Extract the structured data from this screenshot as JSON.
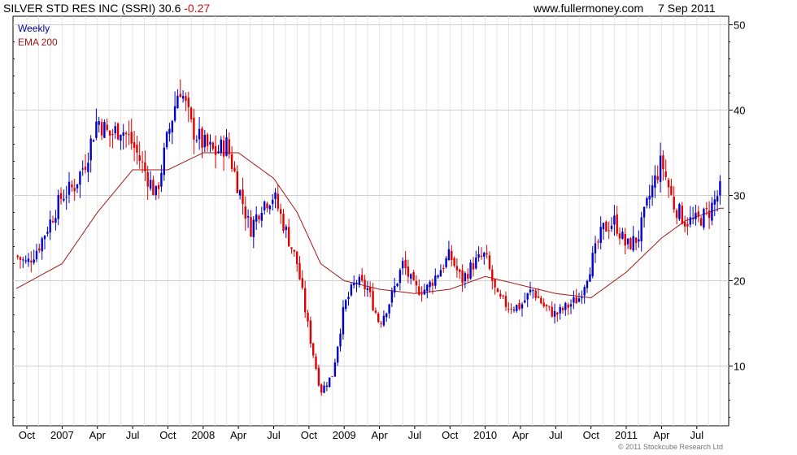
{
  "header": {
    "name": "SILVER STD RES INC (SSRI)",
    "last": "30.6",
    "change": "-0.27",
    "site": "www.fullermoney.com",
    "date": "7 Sep 2011"
  },
  "footer": {
    "copyright": "© 2011 Stockcube Research Ltd"
  },
  "colors": {
    "up": "#0000cc",
    "down": "#e00000",
    "ema": "#a01818",
    "grid": "#cfcfcf",
    "legend_weekly": "#00009c",
    "legend_ema": "#a01818"
  },
  "chart_data": {
    "type": "candlestick",
    "legend": [
      "Weekly",
      "EMA 200"
    ],
    "ylim": [
      3,
      51
    ],
    "y_ticks": [
      10,
      20,
      30,
      40,
      50
    ],
    "grid": true,
    "y_axis_side": "right",
    "legend_position": "top-left",
    "x_tick_labels": [
      "Oct",
      "2007",
      "Apr",
      "Jul",
      "Oct",
      "2008",
      "Apr",
      "Jul",
      "Oct",
      "2009",
      "Apr",
      "Jul",
      "Oct",
      "2010",
      "Apr",
      "Jul",
      "Oct",
      "2011",
      "Apr",
      "Jul"
    ],
    "x_tick_dates": [
      "2006-10",
      "2007-01",
      "2007-04",
      "2007-07",
      "2007-10",
      "2008-01",
      "2008-04",
      "2008-07",
      "2008-10",
      "2009-01",
      "2009-04",
      "2009-07",
      "2009-10",
      "2010-01",
      "2010-04",
      "2010-07",
      "2010-10",
      "2011-01",
      "2011-04",
      "2011-07"
    ],
    "x_range": [
      "2006-09",
      "2011-09"
    ],
    "weekly_close_anchors": [
      [
        "2006-09",
        23
      ],
      [
        "2006-10",
        22
      ],
      [
        "2006-11",
        24
      ],
      [
        "2006-12",
        27
      ],
      [
        "2007-01",
        30
      ],
      [
        "2007-02",
        31
      ],
      [
        "2007-03",
        34
      ],
      [
        "2007-04",
        39
      ],
      [
        "2007-05",
        37
      ],
      [
        "2007-06",
        38
      ],
      [
        "2007-07",
        36
      ],
      [
        "2007-08",
        33
      ],
      [
        "2007-09",
        30
      ],
      [
        "2007-10",
        37
      ],
      [
        "2007-11",
        43
      ],
      [
        "2007-12",
        38
      ],
      [
        "2008-01",
        36
      ],
      [
        "2008-02",
        35
      ],
      [
        "2008-03",
        36
      ],
      [
        "2008-04",
        31
      ],
      [
        "2008-05",
        26
      ],
      [
        "2008-06",
        29
      ],
      [
        "2008-07",
        30
      ],
      [
        "2008-08",
        26
      ],
      [
        "2008-09",
        22
      ],
      [
        "2008-10",
        14
      ],
      [
        "2008-11",
        7
      ],
      [
        "2008-12",
        9
      ],
      [
        "2009-01",
        17
      ],
      [
        "2009-02",
        20
      ],
      [
        "2009-03",
        19
      ],
      [
        "2009-04",
        15
      ],
      [
        "2009-05",
        18
      ],
      [
        "2009-06",
        22
      ],
      [
        "2009-07",
        19
      ],
      [
        "2009-08",
        19
      ],
      [
        "2009-09",
        21
      ],
      [
        "2009-10",
        23
      ],
      [
        "2009-11",
        20
      ],
      [
        "2009-12",
        22
      ],
      [
        "2010-01",
        23
      ],
      [
        "2010-02",
        18
      ],
      [
        "2010-03",
        17
      ],
      [
        "2010-04",
        17
      ],
      [
        "2010-05",
        19
      ],
      [
        "2010-06",
        17
      ],
      [
        "2010-07",
        16
      ],
      [
        "2010-08",
        17
      ],
      [
        "2010-09",
        18
      ],
      [
        "2010-10",
        22
      ],
      [
        "2010-11",
        26
      ],
      [
        "2010-12",
        27
      ],
      [
        "2011-01",
        24
      ],
      [
        "2011-02",
        25
      ],
      [
        "2011-03",
        30
      ],
      [
        "2011-04",
        34
      ],
      [
        "2011-05",
        29
      ],
      [
        "2011-06",
        27
      ],
      [
        "2011-07",
        27
      ],
      [
        "2011-08",
        28
      ],
      [
        "2011-09",
        30.6
      ]
    ],
    "ema200_anchors": [
      [
        "2006-09",
        19
      ],
      [
        "2007-01",
        22
      ],
      [
        "2007-04",
        28
      ],
      [
        "2007-07",
        33
      ],
      [
        "2007-10",
        33
      ],
      [
        "2008-01",
        35
      ],
      [
        "2008-04",
        35
      ],
      [
        "2008-07",
        32
      ],
      [
        "2008-09",
        28
      ],
      [
        "2008-11",
        22
      ],
      [
        "2009-01",
        20
      ],
      [
        "2009-04",
        19
      ],
      [
        "2009-07",
        18.5
      ],
      [
        "2009-10",
        19
      ],
      [
        "2010-01",
        20.5
      ],
      [
        "2010-04",
        19.5
      ],
      [
        "2010-07",
        18.5
      ],
      [
        "2010-10",
        18
      ],
      [
        "2011-01",
        21
      ],
      [
        "2011-04",
        25
      ],
      [
        "2011-06",
        27
      ],
      [
        "2011-09",
        28.5
      ]
    ]
  }
}
